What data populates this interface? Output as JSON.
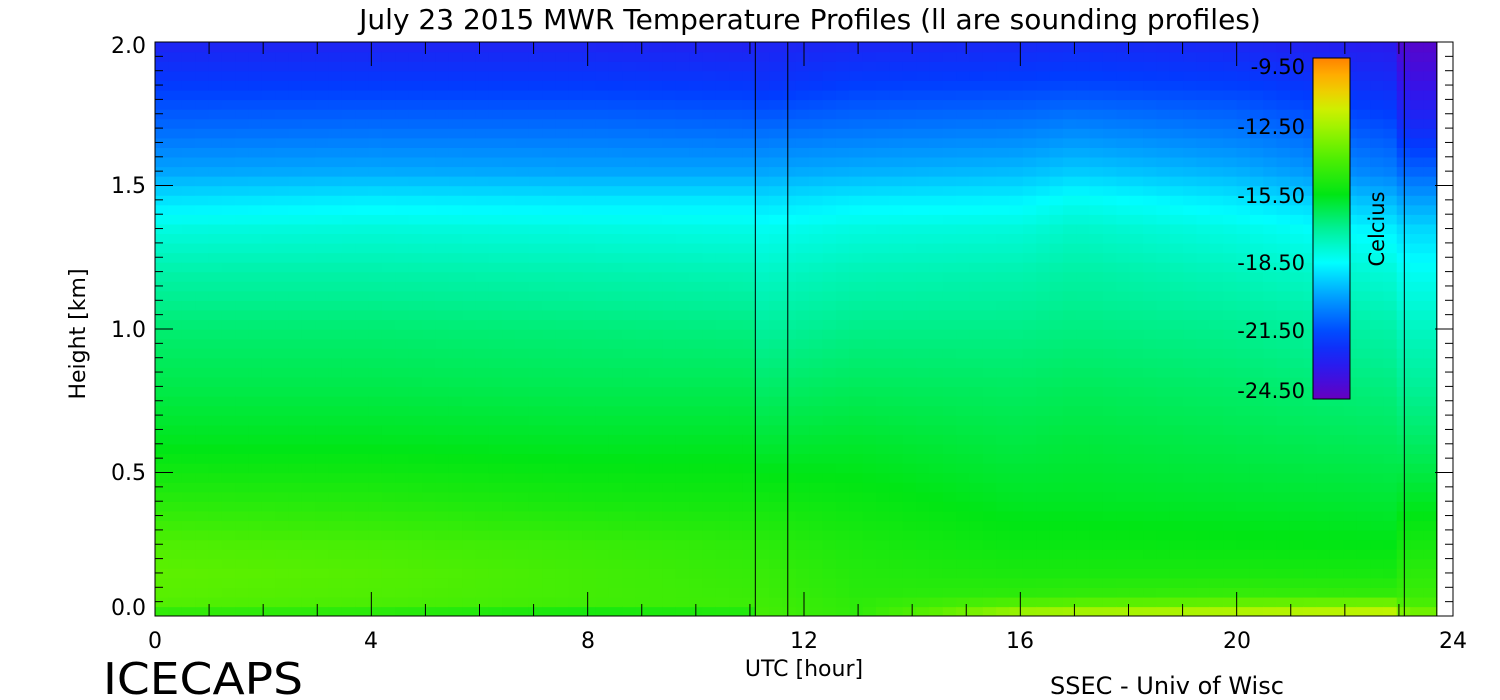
{
  "chart_data": {
    "type": "heatmap",
    "title": "July 23 2015 MWR Temperature Profiles (ll are sounding profiles)",
    "xlabel": "UTC [hour]",
    "ylabel": "Height [km]",
    "xlim": [
      0,
      24
    ],
    "ylim": [
      0,
      2.0
    ],
    "x_ticks": [
      "0",
      "4",
      "8",
      "12",
      "16",
      "20",
      "24"
    ],
    "y_ticks": [
      "0.0",
      "0.5",
      "1.0",
      "1.5",
      "2.0"
    ],
    "colorbar": {
      "label": "Celcius",
      "range": [
        -26.0,
        -9.0
      ],
      "tick_values": [
        -9.5,
        -12.5,
        -15.5,
        -18.5,
        -21.5,
        -24.5
      ],
      "tick_labels": [
        "-9.50",
        "-12.50",
        "-15.50",
        "-18.50",
        "-21.50",
        "-24.50"
      ]
    },
    "sounding_times": [
      11.1,
      11.7,
      23.1,
      23.7
    ],
    "data_end_hour": 23.7,
    "profile_heights_km": [
      0.0,
      0.03,
      0.08,
      0.15,
      0.25,
      0.4,
      0.6,
      0.8,
      1.0,
      1.2,
      1.35,
      1.45,
      1.55,
      1.7,
      1.85,
      2.0
    ],
    "profiles": [
      {
        "hour": 0,
        "temps": [
          -15.5,
          -14.0,
          -13.8,
          -13.7,
          -14.0,
          -14.9,
          -15.9,
          -16.5,
          -17.0,
          -17.8,
          -18.7,
          -19.7,
          -20.8,
          -22.0,
          -23.0,
          -24.0
        ]
      },
      {
        "hour": 4,
        "temps": [
          -15.6,
          -14.2,
          -14.0,
          -13.9,
          -14.2,
          -15.0,
          -15.9,
          -16.5,
          -17.0,
          -17.8,
          -18.6,
          -19.5,
          -20.7,
          -21.9,
          -23.0,
          -24.0
        ]
      },
      {
        "hour": 8,
        "temps": [
          -16.3,
          -14.4,
          -14.3,
          -14.3,
          -14.5,
          -15.3,
          -16.0,
          -16.6,
          -17.1,
          -17.9,
          -18.7,
          -19.6,
          -20.8,
          -21.9,
          -23.0,
          -24.0
        ]
      },
      {
        "hour": 11,
        "temps": [
          -15.8,
          -14.4,
          -14.5,
          -14.6,
          -14.8,
          -15.4,
          -16.0,
          -16.6,
          -17.2,
          -18.0,
          -18.8,
          -19.6,
          -20.8,
          -22.0,
          -23.1,
          -24.1
        ]
      },
      {
        "hour": 11.1,
        "temps": [
          -14.2,
          -14.3,
          -14.4,
          -14.5,
          -14.8,
          -15.4,
          -16.2,
          -16.9,
          -17.6,
          -18.3,
          -19.0,
          -19.8,
          -20.8,
          -22.0,
          -23.3,
          -24.0
        ]
      },
      {
        "hour": 13,
        "temps": [
          -14.8,
          -14.7,
          -14.9,
          -15.0,
          -15.2,
          -15.6,
          -16.1,
          -16.7,
          -17.3,
          -18.0,
          -18.7,
          -19.5,
          -20.6,
          -21.8,
          -22.9,
          -23.9
        ]
      },
      {
        "hour": 16,
        "temps": [
          -11.5,
          -13.5,
          -14.8,
          -15.2,
          -15.6,
          -16.0,
          -16.4,
          -16.8,
          -17.3,
          -17.9,
          -18.6,
          -19.4,
          -20.4,
          -21.6,
          -22.8,
          -23.8
        ]
      },
      {
        "hour": 17,
        "temps": [
          -11.3,
          -13.3,
          -14.7,
          -15.2,
          -15.6,
          -16.0,
          -16.3,
          -16.7,
          -17.2,
          -17.7,
          -18.3,
          -19.0,
          -20.1,
          -21.4,
          -22.7,
          -23.7
        ]
      },
      {
        "hour": 20,
        "temps": [
          -11.2,
          -13.0,
          -14.6,
          -15.2,
          -15.7,
          -16.1,
          -16.5,
          -16.9,
          -17.4,
          -18.1,
          -18.8,
          -19.6,
          -20.6,
          -21.8,
          -22.9,
          -23.9
        ]
      },
      {
        "hour": 23,
        "temps": [
          -11.0,
          -12.6,
          -14.7,
          -15.3,
          -15.8,
          -16.2,
          -16.7,
          -17.2,
          -17.8,
          -18.6,
          -19.5,
          -20.5,
          -21.6,
          -22.6,
          -23.6,
          -24.4
        ]
      },
      {
        "hour": 23.1,
        "temps": [
          -12.6,
          -14.0,
          -14.5,
          -14.8,
          -15.3,
          -16.0,
          -16.8,
          -17.5,
          -18.2,
          -19.0,
          -19.9,
          -20.9,
          -22.1,
          -23.6,
          -24.8,
          -25.6
        ]
      }
    ]
  },
  "footer": {
    "logo": "ICECAPS",
    "credit": "SSEC - Univ of Wisc"
  }
}
